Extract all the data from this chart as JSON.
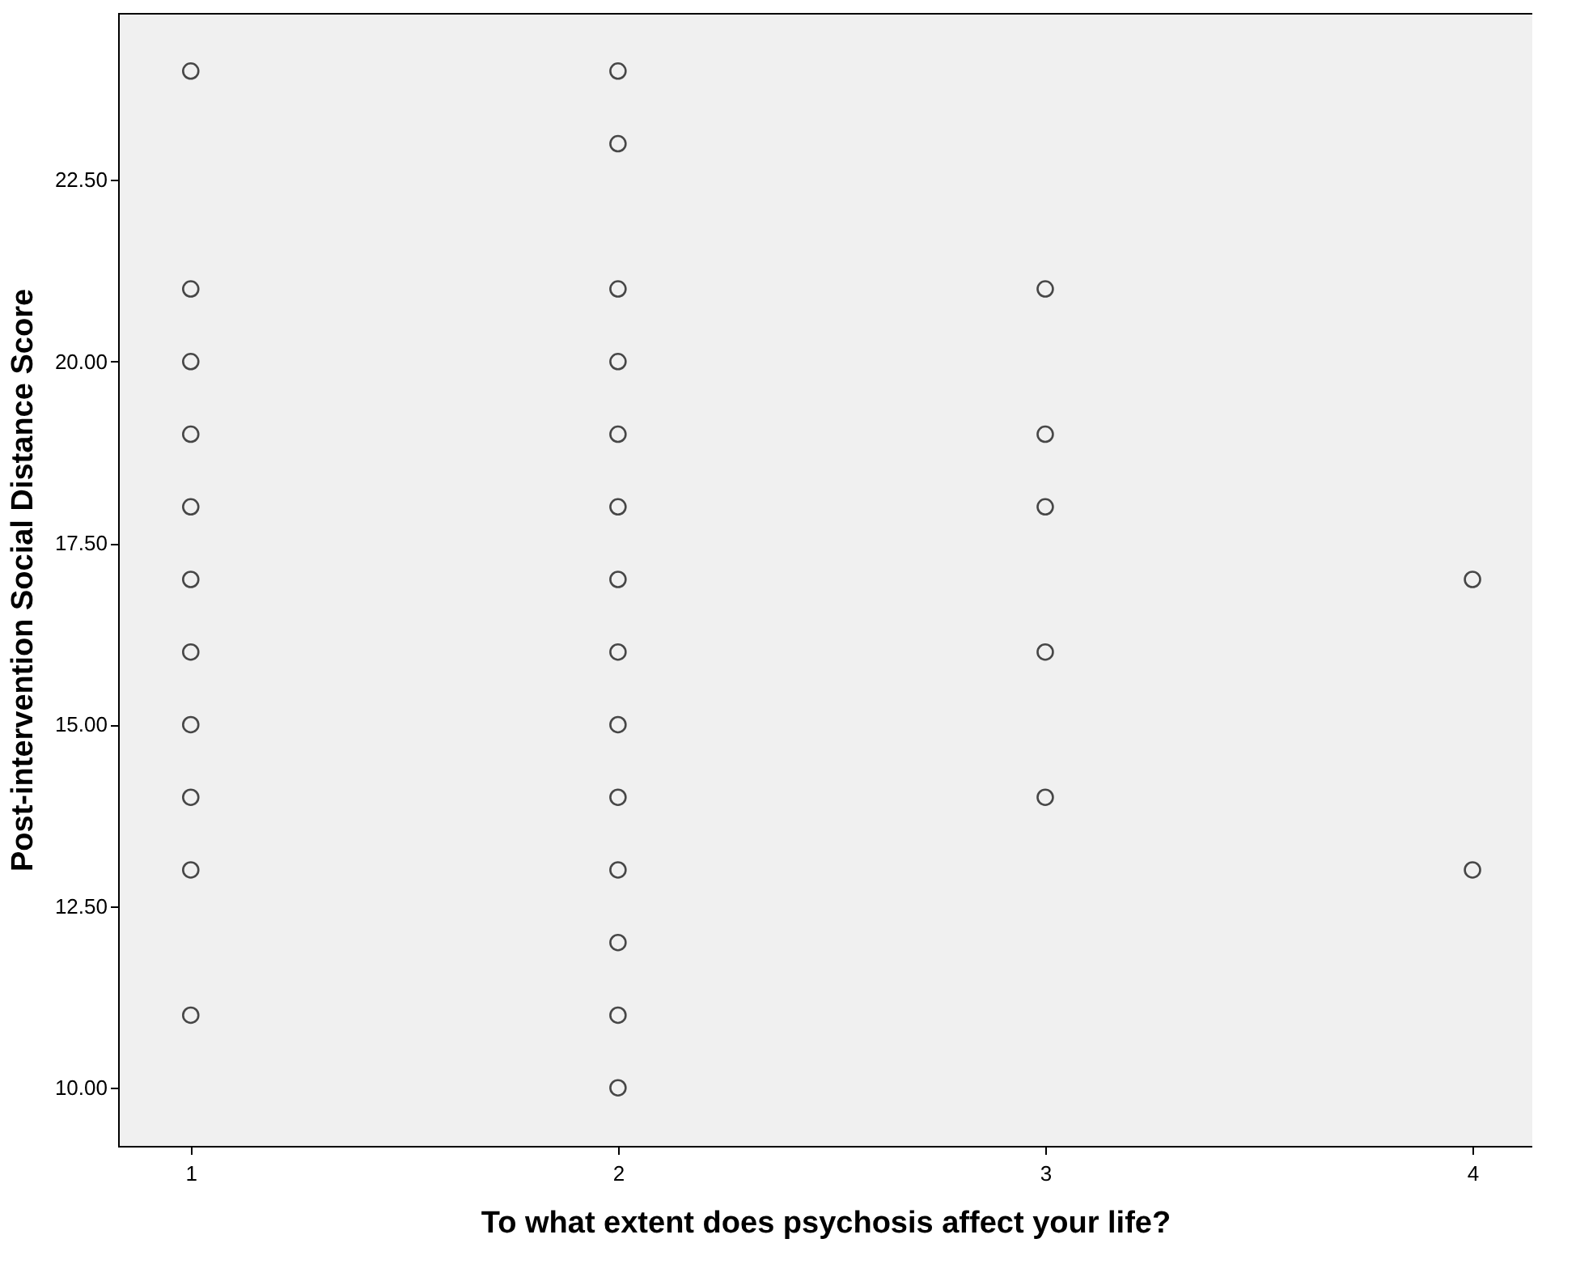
{
  "chart_data": {
    "type": "scatter",
    "xlabel": "To what extent does psychosis affect your life?",
    "ylabel": "Post-intervention Social Distance Score",
    "x": [
      1,
      1,
      1,
      1,
      1,
      1,
      1,
      1,
      1,
      1,
      1,
      2,
      2,
      2,
      2,
      2,
      2,
      2,
      2,
      2,
      2,
      2,
      2,
      2,
      2,
      3,
      3,
      3,
      3,
      3,
      4,
      4
    ],
    "values": [
      24,
      21,
      20,
      19,
      18,
      17,
      16,
      15,
      14,
      13,
      11,
      24,
      23,
      21,
      20,
      19,
      18,
      17,
      16,
      15,
      14,
      13,
      12,
      11,
      10,
      21,
      19,
      18,
      16,
      14,
      17,
      13
    ],
    "color": "#000000",
    "marker": "circle",
    "grid": false,
    "xlim": [
      0.83,
      4.14
    ],
    "xticks": [
      1,
      2,
      3,
      4
    ],
    "ylim": [
      9.2,
      24.8
    ],
    "yticks": [
      {
        "value": 10,
        "label": "10.00"
      },
      {
        "value": 12.5,
        "label": "12.50"
      },
      {
        "value": 15,
        "label": "15.00"
      },
      {
        "value": 17.5,
        "label": "17.50"
      },
      {
        "value": 20,
        "label": "20.00"
      },
      {
        "value": 22.5,
        "label": "22.50"
      }
    ]
  }
}
